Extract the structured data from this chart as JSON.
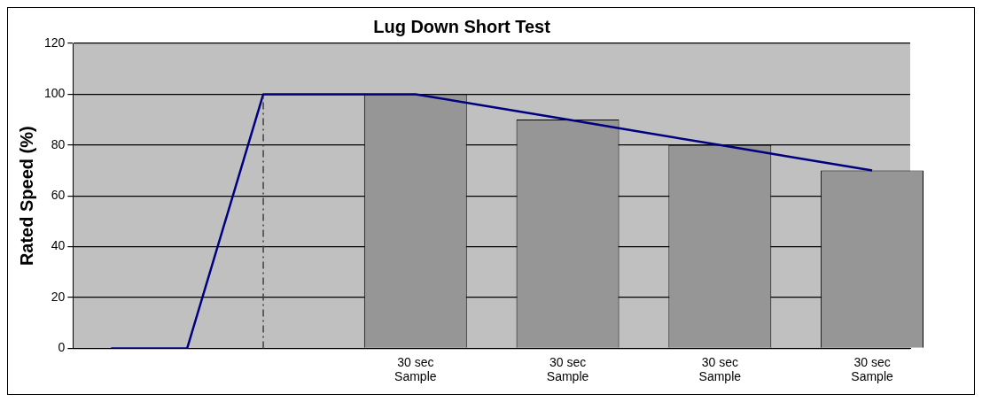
{
  "chart_data": {
    "type": "bar",
    "title": "Lug Down Short Test",
    "ylabel": "Rated Speed (%)",
    "categories": [
      null,
      null,
      null,
      null,
      "30 sec\nSample",
      null,
      "30 sec\nSample",
      null,
      "30 sec\nSample",
      null,
      "30 sec\nSample"
    ],
    "series": [
      {
        "color": "#969696",
        "values": [
          null,
          null,
          null,
          null,
          100,
          null,
          90,
          null,
          80,
          null,
          70
        ]
      },
      {
        "type": "line",
        "color": "#000080",
        "values": [
          0,
          0,
          100,
          100,
          100,
          95,
          90,
          85,
          80,
          75,
          70
        ]
      }
    ],
    "ylim": [
      0,
      120
    ],
    "yticks": [
      0,
      20,
      40,
      60,
      80,
      100,
      120
    ],
    "grid": "y",
    "legend": false,
    "marker": "none"
  }
}
